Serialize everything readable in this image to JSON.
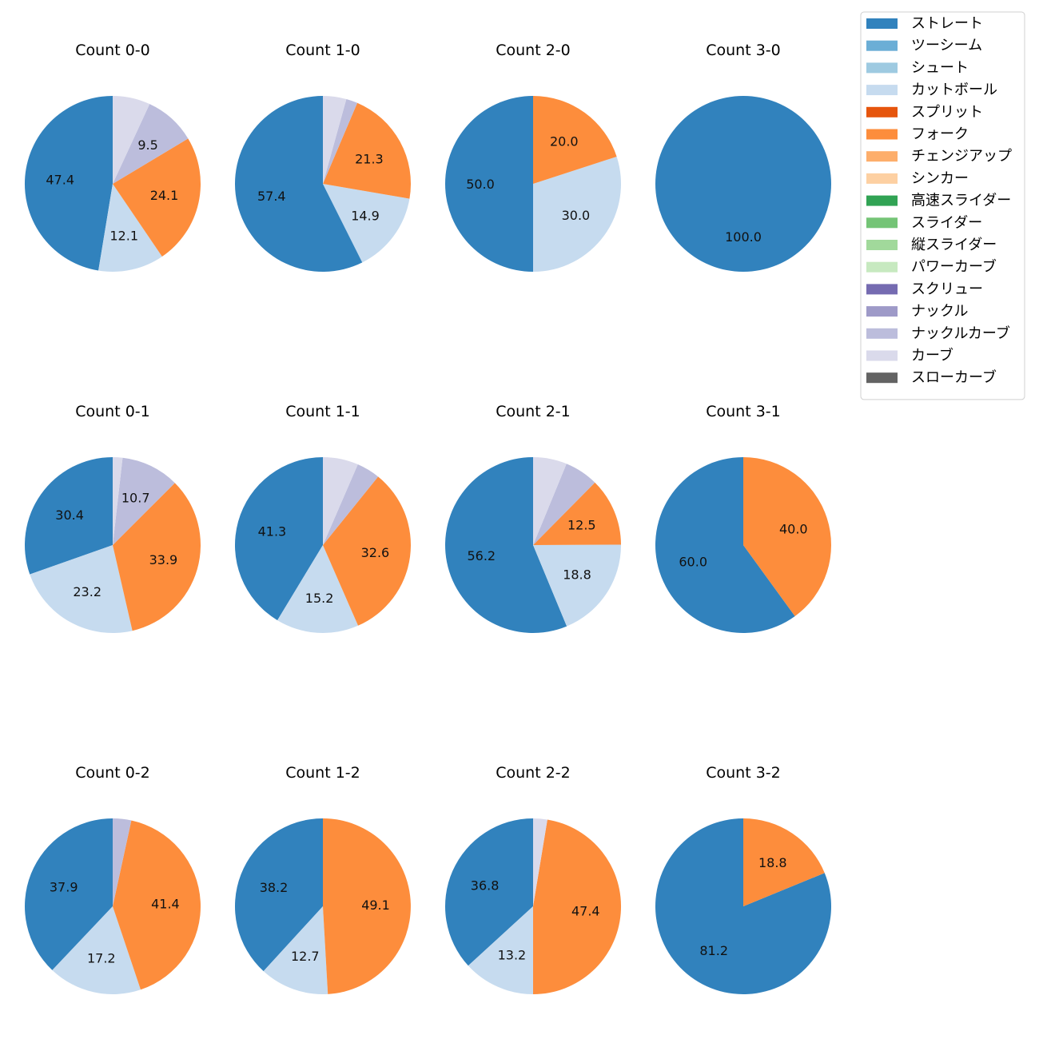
{
  "chart_data": {
    "type": "pie",
    "legend": {
      "placement": "top-right",
      "entries": [
        {
          "name": "ストレート",
          "color": "#3182bd"
        },
        {
          "name": "ツーシーム",
          "color": "#6baed6"
        },
        {
          "name": "シュート",
          "color": "#9ecae1"
        },
        {
          "name": "カットボール",
          "color": "#c6dbef"
        },
        {
          "name": "スプリット",
          "color": "#e6550d"
        },
        {
          "name": "フォーク",
          "color": "#fd8d3c"
        },
        {
          "name": "チェンジアップ",
          "color": "#fdae6b"
        },
        {
          "name": "シンカー",
          "color": "#fdd0a2"
        },
        {
          "name": "高速スライダー",
          "color": "#31a354"
        },
        {
          "name": "スライダー",
          "color": "#74c476"
        },
        {
          "name": "縦スライダー",
          "color": "#a1d99b"
        },
        {
          "name": "パワーカーブ",
          "color": "#c7e9c0"
        },
        {
          "name": "スクリュー",
          "color": "#756bb1"
        },
        {
          "name": "ナックル",
          "color": "#9e9ac8"
        },
        {
          "name": "ナックルカーブ",
          "color": "#bcbddc"
        },
        {
          "name": "カーブ",
          "color": "#dadaeb"
        },
        {
          "name": "スローカーブ",
          "color": "#636363"
        }
      ]
    },
    "charts": [
      {
        "title": "Count 0-0",
        "slices": [
          {
            "name": "ストレート",
            "value": 47.4,
            "label": "47.4"
          },
          {
            "name": "カットボール",
            "value": 12.1,
            "label": "12.1"
          },
          {
            "name": "フォーク",
            "value": 24.1,
            "label": "24.1"
          },
          {
            "name": "ナックルカーブ",
            "value": 9.5,
            "label": "9.5"
          },
          {
            "name": "カーブ",
            "value": 6.9,
            "label": ""
          }
        ]
      },
      {
        "title": "Count 1-0",
        "slices": [
          {
            "name": "ストレート",
            "value": 57.4,
            "label": "57.4"
          },
          {
            "name": "カットボール",
            "value": 14.9,
            "label": "14.9"
          },
          {
            "name": "フォーク",
            "value": 21.3,
            "label": "21.3"
          },
          {
            "name": "ナックルカーブ",
            "value": 2.1,
            "label": ""
          },
          {
            "name": "カーブ",
            "value": 4.3,
            "label": ""
          }
        ]
      },
      {
        "title": "Count 2-0",
        "slices": [
          {
            "name": "ストレート",
            "value": 50.0,
            "label": "50.0"
          },
          {
            "name": "カットボール",
            "value": 30.0,
            "label": "30.0"
          },
          {
            "name": "フォーク",
            "value": 20.0,
            "label": "20.0"
          }
        ]
      },
      {
        "title": "Count 3-0",
        "slices": [
          {
            "name": "ストレート",
            "value": 100.0,
            "label": "100.0"
          }
        ]
      },
      {
        "title": "Count 0-1",
        "slices": [
          {
            "name": "ストレート",
            "value": 30.4,
            "label": "30.4"
          },
          {
            "name": "カットボール",
            "value": 23.2,
            "label": "23.2"
          },
          {
            "name": "フォーク",
            "value": 33.9,
            "label": "33.9"
          },
          {
            "name": "ナックルカーブ",
            "value": 10.7,
            "label": "10.7"
          },
          {
            "name": "カーブ",
            "value": 1.8,
            "label": ""
          }
        ]
      },
      {
        "title": "Count 1-1",
        "slices": [
          {
            "name": "ストレート",
            "value": 41.3,
            "label": "41.3"
          },
          {
            "name": "カットボール",
            "value": 15.2,
            "label": "15.2"
          },
          {
            "name": "フォーク",
            "value": 32.6,
            "label": "32.6"
          },
          {
            "name": "ナックルカーブ",
            "value": 4.3,
            "label": ""
          },
          {
            "name": "カーブ",
            "value": 6.5,
            "label": ""
          }
        ]
      },
      {
        "title": "Count 2-1",
        "slices": [
          {
            "name": "ストレート",
            "value": 56.2,
            "label": "56.2"
          },
          {
            "name": "カットボール",
            "value": 18.8,
            "label": "18.8"
          },
          {
            "name": "フォーク",
            "value": 12.5,
            "label": "12.5"
          },
          {
            "name": "ナックルカーブ",
            "value": 6.2,
            "label": ""
          },
          {
            "name": "カーブ",
            "value": 6.2,
            "label": ""
          }
        ]
      },
      {
        "title": "Count 3-1",
        "slices": [
          {
            "name": "ストレート",
            "value": 60.0,
            "label": "60.0"
          },
          {
            "name": "フォーク",
            "value": 40.0,
            "label": "40.0"
          }
        ]
      },
      {
        "title": "Count 0-2",
        "slices": [
          {
            "name": "ストレート",
            "value": 37.9,
            "label": "37.9"
          },
          {
            "name": "カットボール",
            "value": 17.2,
            "label": "17.2"
          },
          {
            "name": "フォーク",
            "value": 41.4,
            "label": "41.4"
          },
          {
            "name": "ナックルカーブ",
            "value": 3.4,
            "label": ""
          }
        ]
      },
      {
        "title": "Count 1-2",
        "slices": [
          {
            "name": "ストレート",
            "value": 38.2,
            "label": "38.2"
          },
          {
            "name": "カットボール",
            "value": 12.7,
            "label": "12.7"
          },
          {
            "name": "フォーク",
            "value": 49.1,
            "label": "49.1"
          }
        ]
      },
      {
        "title": "Count 2-2",
        "slices": [
          {
            "name": "ストレート",
            "value": 36.8,
            "label": "36.8"
          },
          {
            "name": "カットボール",
            "value": 13.2,
            "label": "13.2"
          },
          {
            "name": "フォーク",
            "value": 47.4,
            "label": "47.4"
          },
          {
            "name": "カーブ",
            "value": 2.6,
            "label": ""
          }
        ]
      },
      {
        "title": "Count 3-2",
        "slices": [
          {
            "name": "ストレート",
            "value": 81.2,
            "label": "81.2"
          },
          {
            "name": "フォーク",
            "value": 18.8,
            "label": "18.8"
          }
        ]
      }
    ]
  }
}
